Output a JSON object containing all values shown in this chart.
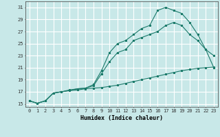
{
  "xlabel": "Humidex (Indice chaleur)",
  "ylabel": "",
  "bg_color": "#c8e8e8",
  "grid_color": "#ffffff",
  "line_color": "#1a7a6a",
  "xlim": [
    -0.5,
    23.5
  ],
  "ylim": [
    14.5,
    32
  ],
  "xticks": [
    0,
    1,
    2,
    3,
    4,
    5,
    6,
    7,
    8,
    9,
    10,
    11,
    12,
    13,
    14,
    15,
    16,
    17,
    18,
    19,
    20,
    21,
    22,
    23
  ],
  "yticks": [
    15,
    17,
    19,
    21,
    23,
    25,
    27,
    29,
    31
  ],
  "line1_x": [
    0,
    1,
    2,
    3,
    4,
    5,
    6,
    7,
    8,
    9,
    10,
    11,
    12,
    13,
    14,
    15,
    16,
    17,
    18,
    19,
    20,
    21,
    22,
    23
  ],
  "line1_y": [
    15.5,
    15.1,
    15.5,
    16.8,
    17.0,
    17.2,
    17.3,
    17.5,
    17.6,
    17.7,
    17.9,
    18.1,
    18.4,
    18.7,
    19.0,
    19.3,
    19.6,
    19.9,
    20.2,
    20.5,
    20.7,
    20.9,
    21.0,
    21.1
  ],
  "line2_x": [
    0,
    1,
    2,
    3,
    4,
    5,
    6,
    7,
    8,
    9,
    10,
    11,
    12,
    13,
    14,
    15,
    16,
    17,
    18,
    19,
    20,
    21,
    22,
    23
  ],
  "line2_y": [
    15.5,
    15.1,
    15.5,
    16.8,
    17.0,
    17.2,
    17.5,
    17.6,
    18.0,
    20.0,
    22.0,
    23.5,
    24.0,
    25.5,
    26.0,
    26.5,
    27.0,
    28.0,
    28.5,
    28.0,
    26.5,
    25.5,
    24.0,
    23.0
  ],
  "line3_x": [
    0,
    1,
    2,
    3,
    4,
    5,
    6,
    7,
    8,
    9,
    10,
    11,
    12,
    13,
    14,
    15,
    16,
    17,
    18,
    19,
    20,
    21,
    22,
    23
  ],
  "line3_y": [
    15.5,
    15.1,
    15.5,
    16.8,
    17.0,
    17.3,
    17.5,
    17.6,
    18.2,
    20.5,
    23.5,
    25.0,
    25.5,
    26.5,
    27.5,
    28.0,
    30.5,
    31.0,
    30.5,
    30.0,
    28.5,
    26.5,
    24.0,
    21.0
  ]
}
